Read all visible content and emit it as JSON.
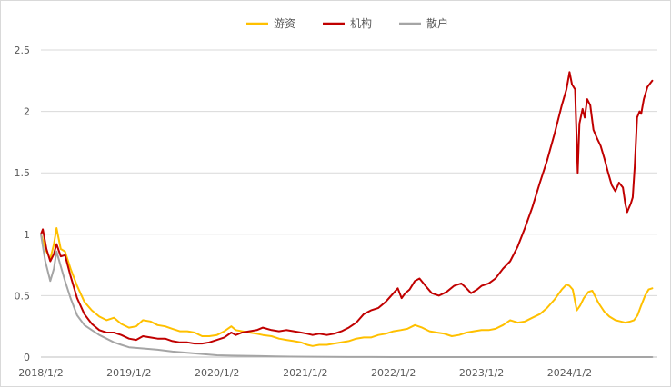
{
  "chart_data": {
    "type": "line",
    "title": "",
    "xlabel": "",
    "ylabel": "",
    "ylim": [
      0,
      2.5
    ],
    "yticks": [
      "0",
      "0.5",
      "1",
      "1.5",
      "2",
      "2.5"
    ],
    "xticks": [
      "2018/1/2",
      "2019/1/2",
      "2020/1/2",
      "2021/1/2",
      "2022/1/2",
      "2023/1/2",
      "2024/1/2"
    ],
    "xlim": [
      "2018-01-02",
      "2024-12-31"
    ],
    "grid": "horizontal",
    "legend_position": "top-center",
    "series": [
      {
        "name": "游资",
        "color": "#FFC000",
        "points": [
          [
            "2018-01-02",
            1.0
          ],
          [
            "2018-01-25",
            0.86
          ],
          [
            "2018-02-10",
            0.8
          ],
          [
            "2018-02-25",
            0.92
          ],
          [
            "2018-03-08",
            1.05
          ],
          [
            "2018-03-25",
            0.88
          ],
          [
            "2018-04-12",
            0.86
          ],
          [
            "2018-05-05",
            0.72
          ],
          [
            "2018-06-01",
            0.58
          ],
          [
            "2018-07-01",
            0.45
          ],
          [
            "2018-08-01",
            0.38
          ],
          [
            "2018-09-01",
            0.33
          ],
          [
            "2018-10-01",
            0.3
          ],
          [
            "2018-11-01",
            0.32
          ],
          [
            "2018-12-01",
            0.27
          ],
          [
            "2019-01-02",
            0.24
          ],
          [
            "2019-02-01",
            0.25
          ],
          [
            "2019-03-01",
            0.3
          ],
          [
            "2019-04-01",
            0.29
          ],
          [
            "2019-05-01",
            0.26
          ],
          [
            "2019-06-01",
            0.25
          ],
          [
            "2019-07-01",
            0.23
          ],
          [
            "2019-08-01",
            0.21
          ],
          [
            "2019-09-01",
            0.21
          ],
          [
            "2019-10-01",
            0.2
          ],
          [
            "2019-11-01",
            0.17
          ],
          [
            "2019-12-01",
            0.17
          ],
          [
            "2020-01-02",
            0.18
          ],
          [
            "2020-02-01",
            0.21
          ],
          [
            "2020-03-01",
            0.25
          ],
          [
            "2020-03-20",
            0.22
          ],
          [
            "2020-04-15",
            0.21
          ],
          [
            "2020-05-15",
            0.2
          ],
          [
            "2020-06-15",
            0.19
          ],
          [
            "2020-07-10",
            0.18
          ],
          [
            "2020-08-15",
            0.17
          ],
          [
            "2020-09-15",
            0.15
          ],
          [
            "2020-10-15",
            0.14
          ],
          [
            "2020-11-15",
            0.13
          ],
          [
            "2020-12-15",
            0.12
          ],
          [
            "2021-01-10",
            0.1
          ],
          [
            "2021-02-01",
            0.09
          ],
          [
            "2021-03-01",
            0.1
          ],
          [
            "2021-04-01",
            0.1
          ],
          [
            "2021-05-01",
            0.11
          ],
          [
            "2021-06-01",
            0.12
          ],
          [
            "2021-07-01",
            0.13
          ],
          [
            "2021-08-01",
            0.15
          ],
          [
            "2021-09-01",
            0.16
          ],
          [
            "2021-10-01",
            0.16
          ],
          [
            "2021-11-01",
            0.18
          ],
          [
            "2021-12-01",
            0.19
          ],
          [
            "2022-01-02",
            0.21
          ],
          [
            "2022-02-01",
            0.22
          ],
          [
            "2022-03-01",
            0.23
          ],
          [
            "2022-04-01",
            0.26
          ],
          [
            "2022-05-01",
            0.24
          ],
          [
            "2022-06-01",
            0.21
          ],
          [
            "2022-07-01",
            0.2
          ],
          [
            "2022-08-01",
            0.19
          ],
          [
            "2022-09-01",
            0.17
          ],
          [
            "2022-10-01",
            0.18
          ],
          [
            "2022-11-01",
            0.2
          ],
          [
            "2022-12-01",
            0.21
          ],
          [
            "2023-01-02",
            0.22
          ],
          [
            "2023-02-01",
            0.22
          ],
          [
            "2023-03-01",
            0.23
          ],
          [
            "2023-04-01",
            0.26
          ],
          [
            "2023-05-01",
            0.3
          ],
          [
            "2023-06-01",
            0.28
          ],
          [
            "2023-07-01",
            0.29
          ],
          [
            "2023-08-01",
            0.32
          ],
          [
            "2023-09-01",
            0.35
          ],
          [
            "2023-10-01",
            0.4
          ],
          [
            "2023-11-01",
            0.47
          ],
          [
            "2023-12-01",
            0.55
          ],
          [
            "2023-12-20",
            0.59
          ],
          [
            "2024-01-02",
            0.58
          ],
          [
            "2024-01-15",
            0.55
          ],
          [
            "2024-02-01",
            0.38
          ],
          [
            "2024-02-15",
            0.42
          ],
          [
            "2024-03-01",
            0.48
          ],
          [
            "2024-03-20",
            0.53
          ],
          [
            "2024-04-05",
            0.54
          ],
          [
            "2024-05-01",
            0.44
          ],
          [
            "2024-05-25",
            0.37
          ],
          [
            "2024-06-15",
            0.33
          ],
          [
            "2024-07-10",
            0.3
          ],
          [
            "2024-08-01",
            0.29
          ],
          [
            "2024-08-20",
            0.28
          ],
          [
            "2024-09-10",
            0.29
          ],
          [
            "2024-09-25",
            0.3
          ],
          [
            "2024-10-10",
            0.34
          ],
          [
            "2024-10-25",
            0.42
          ],
          [
            "2024-11-10",
            0.5
          ],
          [
            "2024-11-25",
            0.55
          ],
          [
            "2024-12-10",
            0.56
          ]
        ]
      },
      {
        "name": "机构",
        "color": "#C00000",
        "points": [
          [
            "2018-01-02",
            1.0
          ],
          [
            "2018-01-10",
            1.04
          ],
          [
            "2018-01-25",
            0.88
          ],
          [
            "2018-02-10",
            0.78
          ],
          [
            "2018-02-25",
            0.84
          ],
          [
            "2018-03-08",
            0.92
          ],
          [
            "2018-03-25",
            0.82
          ],
          [
            "2018-04-12",
            0.83
          ],
          [
            "2018-05-05",
            0.66
          ],
          [
            "2018-06-01",
            0.48
          ],
          [
            "2018-07-01",
            0.35
          ],
          [
            "2018-08-01",
            0.27
          ],
          [
            "2018-09-01",
            0.22
          ],
          [
            "2018-10-01",
            0.2
          ],
          [
            "2018-11-01",
            0.2
          ],
          [
            "2018-12-01",
            0.18
          ],
          [
            "2019-01-02",
            0.15
          ],
          [
            "2019-02-01",
            0.14
          ],
          [
            "2019-03-01",
            0.17
          ],
          [
            "2019-04-01",
            0.16
          ],
          [
            "2019-05-01",
            0.15
          ],
          [
            "2019-06-01",
            0.15
          ],
          [
            "2019-07-01",
            0.13
          ],
          [
            "2019-08-01",
            0.12
          ],
          [
            "2019-09-01",
            0.12
          ],
          [
            "2019-10-01",
            0.11
          ],
          [
            "2019-11-01",
            0.11
          ],
          [
            "2019-12-01",
            0.12
          ],
          [
            "2020-01-02",
            0.14
          ],
          [
            "2020-02-01",
            0.16
          ],
          [
            "2020-03-01",
            0.2
          ],
          [
            "2020-03-20",
            0.18
          ],
          [
            "2020-04-15",
            0.2
          ],
          [
            "2020-05-15",
            0.21
          ],
          [
            "2020-06-15",
            0.22
          ],
          [
            "2020-07-10",
            0.24
          ],
          [
            "2020-08-15",
            0.22
          ],
          [
            "2020-09-15",
            0.21
          ],
          [
            "2020-10-15",
            0.22
          ],
          [
            "2020-11-15",
            0.21
          ],
          [
            "2020-12-15",
            0.2
          ],
          [
            "2021-01-10",
            0.19
          ],
          [
            "2021-02-01",
            0.18
          ],
          [
            "2021-03-01",
            0.19
          ],
          [
            "2021-04-01",
            0.18
          ],
          [
            "2021-05-01",
            0.19
          ],
          [
            "2021-06-01",
            0.21
          ],
          [
            "2021-07-01",
            0.24
          ],
          [
            "2021-08-01",
            0.28
          ],
          [
            "2021-09-01",
            0.35
          ],
          [
            "2021-10-01",
            0.38
          ],
          [
            "2021-11-01",
            0.4
          ],
          [
            "2021-12-01",
            0.45
          ],
          [
            "2022-01-02",
            0.52
          ],
          [
            "2022-01-20",
            0.56
          ],
          [
            "2022-02-05",
            0.48
          ],
          [
            "2022-02-20",
            0.52
          ],
          [
            "2022-03-10",
            0.55
          ],
          [
            "2022-04-01",
            0.62
          ],
          [
            "2022-04-20",
            0.64
          ],
          [
            "2022-05-15",
            0.58
          ],
          [
            "2022-06-10",
            0.52
          ],
          [
            "2022-07-10",
            0.5
          ],
          [
            "2022-08-10",
            0.53
          ],
          [
            "2022-09-10",
            0.58
          ],
          [
            "2022-10-10",
            0.6
          ],
          [
            "2022-11-01",
            0.56
          ],
          [
            "2022-11-20",
            0.52
          ],
          [
            "2022-12-15",
            0.55
          ],
          [
            "2023-01-02",
            0.58
          ],
          [
            "2023-02-01",
            0.6
          ],
          [
            "2023-03-01",
            0.64
          ],
          [
            "2023-04-01",
            0.72
          ],
          [
            "2023-05-01",
            0.78
          ],
          [
            "2023-06-01",
            0.9
          ],
          [
            "2023-07-01",
            1.05
          ],
          [
            "2023-08-01",
            1.22
          ],
          [
            "2023-09-01",
            1.42
          ],
          [
            "2023-10-01",
            1.6
          ],
          [
            "2023-11-01",
            1.82
          ],
          [
            "2023-12-01",
            2.05
          ],
          [
            "2023-12-20",
            2.18
          ],
          [
            "2024-01-02",
            2.32
          ],
          [
            "2024-01-12",
            2.22
          ],
          [
            "2024-01-25",
            2.18
          ],
          [
            "2024-02-05",
            1.5
          ],
          [
            "2024-02-12",
            1.9
          ],
          [
            "2024-02-25",
            2.02
          ],
          [
            "2024-03-05",
            1.95
          ],
          [
            "2024-03-15",
            2.1
          ],
          [
            "2024-03-28",
            2.05
          ],
          [
            "2024-04-10",
            1.85
          ],
          [
            "2024-04-25",
            1.78
          ],
          [
            "2024-05-10",
            1.72
          ],
          [
            "2024-05-25",
            1.62
          ],
          [
            "2024-06-10",
            1.5
          ],
          [
            "2024-06-25",
            1.4
          ],
          [
            "2024-07-10",
            1.35
          ],
          [
            "2024-07-25",
            1.42
          ],
          [
            "2024-08-10",
            1.38
          ],
          [
            "2024-08-20",
            1.25
          ],
          [
            "2024-08-28",
            1.18
          ],
          [
            "2024-09-05",
            1.22
          ],
          [
            "2024-09-12",
            1.25
          ],
          [
            "2024-09-20",
            1.3
          ],
          [
            "2024-09-28",
            1.55
          ],
          [
            "2024-10-08",
            1.95
          ],
          [
            "2024-10-18",
            2.0
          ],
          [
            "2024-10-25",
            1.98
          ],
          [
            "2024-11-05",
            2.1
          ],
          [
            "2024-11-20",
            2.2
          ],
          [
            "2024-12-10",
            2.25
          ]
        ]
      },
      {
        "name": "散户",
        "color": "#A5A5A5",
        "points": [
          [
            "2018-01-02",
            1.0
          ],
          [
            "2018-01-20",
            0.78
          ],
          [
            "2018-02-10",
            0.62
          ],
          [
            "2018-02-25",
            0.72
          ],
          [
            "2018-03-08",
            0.86
          ],
          [
            "2018-03-25",
            0.74
          ],
          [
            "2018-04-12",
            0.62
          ],
          [
            "2018-05-05",
            0.48
          ],
          [
            "2018-06-01",
            0.34
          ],
          [
            "2018-07-01",
            0.26
          ],
          [
            "2018-08-01",
            0.22
          ],
          [
            "2018-09-01",
            0.18
          ],
          [
            "2018-10-01",
            0.15
          ],
          [
            "2018-11-01",
            0.12
          ],
          [
            "2018-12-01",
            0.1
          ],
          [
            "2019-01-02",
            0.08
          ],
          [
            "2019-03-01",
            0.07
          ],
          [
            "2019-05-01",
            0.06
          ],
          [
            "2019-07-01",
            0.045
          ],
          [
            "2019-09-01",
            0.035
          ],
          [
            "2019-11-01",
            0.025
          ],
          [
            "2020-01-02",
            0.015
          ],
          [
            "2020-03-01",
            0.012
          ],
          [
            "2020-05-01",
            0.01
          ],
          [
            "2020-07-01",
            0.008
          ],
          [
            "2020-09-01",
            0.005
          ],
          [
            "2020-11-01",
            0.004
          ],
          [
            "2021-01-02",
            0.003
          ],
          [
            "2021-04-01",
            0.002
          ],
          [
            "2021-07-01",
            0.001
          ],
          [
            "2021-10-01",
            0.0005
          ],
          [
            "2022-01-02",
            0.0
          ],
          [
            "2022-06-01",
            0.0
          ],
          [
            "2023-01-02",
            0.0
          ],
          [
            "2023-06-01",
            0.0
          ],
          [
            "2024-01-02",
            0.0
          ],
          [
            "2024-06-01",
            0.0
          ],
          [
            "2024-12-10",
            0.0
          ]
        ]
      }
    ]
  }
}
